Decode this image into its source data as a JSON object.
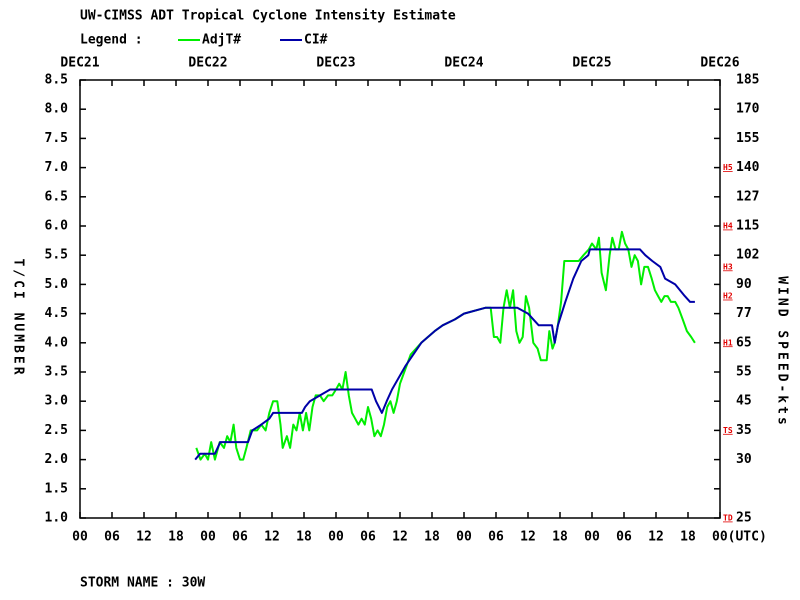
{
  "chart_data": {
    "type": "line",
    "title": "UW-CIMSS ADT Tropical Cyclone Intensity Estimate",
    "legend_label": "Legend :",
    "ylabel": "T/CI NUMBER",
    "y2label": "WIND SPEED-kts",
    "footer": "STORM NAME : 30W",
    "xlim": [
      0,
      120
    ],
    "xticks": [
      {
        "value": 0,
        "label": "00"
      },
      {
        "value": 6,
        "label": "06"
      },
      {
        "value": 12,
        "label": "12"
      },
      {
        "value": 18,
        "label": "18"
      },
      {
        "value": 24,
        "label": "00"
      },
      {
        "value": 30,
        "label": "06"
      },
      {
        "value": 36,
        "label": "12"
      },
      {
        "value": 42,
        "label": "18"
      },
      {
        "value": 48,
        "label": "00"
      },
      {
        "value": 54,
        "label": "06"
      },
      {
        "value": 60,
        "label": "12"
      },
      {
        "value": 66,
        "label": "18"
      },
      {
        "value": 72,
        "label": "00"
      },
      {
        "value": 78,
        "label": "06"
      },
      {
        "value": 84,
        "label": "12"
      },
      {
        "value": 90,
        "label": "18"
      },
      {
        "value": 96,
        "label": "00"
      },
      {
        "value": 102,
        "label": "06"
      },
      {
        "value": 108,
        "label": "12"
      },
      {
        "value": 114,
        "label": "18"
      },
      {
        "value": 120,
        "label": "00(UTC)"
      }
    ],
    "top_xticks": [
      {
        "value": 0,
        "label": "DEC21"
      },
      {
        "value": 24,
        "label": "DEC22"
      },
      {
        "value": 48,
        "label": "DEC23"
      },
      {
        "value": 72,
        "label": "DEC24"
      },
      {
        "value": 96,
        "label": "DEC25"
      },
      {
        "value": 120,
        "label": "DEC26"
      }
    ],
    "ylim": [
      1.0,
      8.5
    ],
    "yticks": [
      {
        "value": 1.0,
        "label": "1.0"
      },
      {
        "value": 1.5,
        "label": "1.5"
      },
      {
        "value": 2.0,
        "label": "2.0"
      },
      {
        "value": 2.5,
        "label": "2.5"
      },
      {
        "value": 3.0,
        "label": "3.0"
      },
      {
        "value": 3.5,
        "label": "3.5"
      },
      {
        "value": 4.0,
        "label": "4.0"
      },
      {
        "value": 4.5,
        "label": "4.5"
      },
      {
        "value": 5.0,
        "label": "5.0"
      },
      {
        "value": 5.5,
        "label": "5.5"
      },
      {
        "value": 6.0,
        "label": "6.0"
      },
      {
        "value": 6.5,
        "label": "6.5"
      },
      {
        "value": 7.0,
        "label": "7.0"
      },
      {
        "value": 7.5,
        "label": "7.5"
      },
      {
        "value": 8.0,
        "label": "8.0"
      },
      {
        "value": 8.5,
        "label": "8.5"
      }
    ],
    "wind_ticks": [
      {
        "t": 1.0,
        "kts": 25
      },
      {
        "t": 2.0,
        "kts": 30
      },
      {
        "t": 2.5,
        "kts": 35
      },
      {
        "t": 3.0,
        "kts": 45
      },
      {
        "t": 3.5,
        "kts": 55
      },
      {
        "t": 4.0,
        "kts": 65
      },
      {
        "t": 4.5,
        "kts": 77
      },
      {
        "t": 5.0,
        "kts": 90
      },
      {
        "t": 5.5,
        "kts": 102
      },
      {
        "t": 6.0,
        "kts": 115
      },
      {
        "t": 6.5,
        "kts": 127
      },
      {
        "t": 7.0,
        "kts": 140
      },
      {
        "t": 7.5,
        "kts": 155
      },
      {
        "t": 8.0,
        "kts": 170
      },
      {
        "t": 8.5,
        "kts": 185
      }
    ],
    "intensity_levels": [
      {
        "t": 1.0,
        "label": "TD"
      },
      {
        "t": 2.5,
        "label": "TS"
      },
      {
        "t": 4.0,
        "label": "H1"
      },
      {
        "t": 4.8,
        "label": "H2"
      },
      {
        "t": 5.3,
        "label": "H3"
      },
      {
        "t": 6.0,
        "label": "H4"
      },
      {
        "t": 7.0,
        "label": "H5"
      }
    ],
    "series": [
      {
        "name": "AdjT#",
        "color": "#00ee00",
        "x": [
          21.8,
          22.6,
          23.4,
          24,
          24.6,
          25.3,
          26.2,
          27,
          27.6,
          28.2,
          28.8,
          29.3,
          30,
          30.6,
          31.2,
          32,
          33.2,
          34,
          34.8,
          35.5,
          36.2,
          37,
          37.6,
          38,
          38.8,
          39.4,
          40,
          40.6,
          41.2,
          41.8,
          42.4,
          43,
          43.6,
          44.2,
          45,
          45.7,
          46.5,
          47.3,
          48,
          48.6,
          49.2,
          49.8,
          50.4,
          51,
          51.6,
          52.2,
          52.8,
          53.4,
          54,
          54.6,
          55.2,
          55.8,
          56.4,
          57,
          57.6,
          58.2,
          58.8,
          59.4,
          60,
          62,
          64,
          66.5,
          68,
          70.3,
          72,
          76,
          77,
          77.6,
          78.2,
          78.8,
          79.4,
          80,
          80.6,
          81.2,
          81.8,
          82.4,
          83,
          83.6,
          84.2,
          85,
          85.8,
          86.4,
          87.5,
          88,
          88.6,
          89,
          89.6,
          90.2,
          90.8,
          92,
          93.5,
          94.4,
          95.4,
          96,
          96.8,
          97.3,
          97.8,
          98.6,
          99.3,
          99.8,
          100.4,
          101,
          101.6,
          102.2,
          102.8,
          103.4,
          104,
          104.6,
          105.2,
          105.8,
          106.5,
          107.2,
          107.8,
          108.4,
          109,
          109.6,
          110.2,
          110.8,
          111.6,
          112.2,
          113,
          113.8,
          114.6,
          115.3
        ],
        "values": [
          2.2,
          2.0,
          2.1,
          2.0,
          2.3,
          2.0,
          2.3,
          2.2,
          2.4,
          2.3,
          2.6,
          2.2,
          2.0,
          2.0,
          2.2,
          2.5,
          2.5,
          2.6,
          2.5,
          2.8,
          3.0,
          3.0,
          2.6,
          2.2,
          2.4,
          2.2,
          2.6,
          2.5,
          2.8,
          2.5,
          2.8,
          2.5,
          2.9,
          3.1,
          3.1,
          3.0,
          3.1,
          3.1,
          3.2,
          3.3,
          3.2,
          3.5,
          3.1,
          2.8,
          2.7,
          2.6,
          2.7,
          2.6,
          2.9,
          2.7,
          2.4,
          2.5,
          2.4,
          2.6,
          2.9,
          3.0,
          2.8,
          3.0,
          3.3,
          3.8,
          4.0,
          4.2,
          4.3,
          4.4,
          4.5,
          4.6,
          4.6,
          4.1,
          4.1,
          4.0,
          4.6,
          4.9,
          4.6,
          4.9,
          4.2,
          4.0,
          4.1,
          4.8,
          4.6,
          4.0,
          3.9,
          3.7,
          3.7,
          4.2,
          3.9,
          4.0,
          4.3,
          4.7,
          5.4,
          5.4,
          5.4,
          5.5,
          5.6,
          5.7,
          5.6,
          5.8,
          5.2,
          4.9,
          5.5,
          5.8,
          5.6,
          5.6,
          5.9,
          5.7,
          5.6,
          5.3,
          5.5,
          5.4,
          5.0,
          5.3,
          5.3,
          5.1,
          4.9,
          4.8,
          4.7,
          4.8,
          4.8,
          4.7,
          4.7,
          4.6,
          4.4,
          4.2,
          4.1,
          4.0
        ]
      },
      {
        "name": "CI#",
        "color": "#0000a8",
        "x": [
          21.6,
          22.5,
          25.3,
          26.3,
          31.5,
          32.3,
          34,
          35.5,
          36.2,
          41.6,
          42.2,
          43.1,
          45,
          46.9,
          54.7,
          55.5,
          56.6,
          57.5,
          58.5,
          61,
          64,
          66.5,
          68,
          70.3,
          72,
          76,
          82,
          84,
          86,
          88.5,
          89,
          89.6,
          91,
          92.5,
          94,
          95.3,
          95.6,
          105,
          106,
          107.3,
          108.8,
          109.7,
          111.6,
          113.4,
          114.4,
          115.3
        ],
        "values": [
          2.0,
          2.1,
          2.1,
          2.3,
          2.3,
          2.5,
          2.6,
          2.7,
          2.8,
          2.8,
          2.9,
          3.0,
          3.1,
          3.2,
          3.2,
          3.0,
          2.8,
          3.0,
          3.2,
          3.6,
          4.0,
          4.2,
          4.3,
          4.4,
          4.5,
          4.6,
          4.6,
          4.5,
          4.3,
          4.3,
          4.0,
          4.3,
          4.7,
          5.1,
          5.4,
          5.5,
          5.6,
          5.6,
          5.5,
          5.4,
          5.3,
          5.1,
          5.0,
          4.8,
          4.7,
          4.7
        ]
      }
    ]
  }
}
